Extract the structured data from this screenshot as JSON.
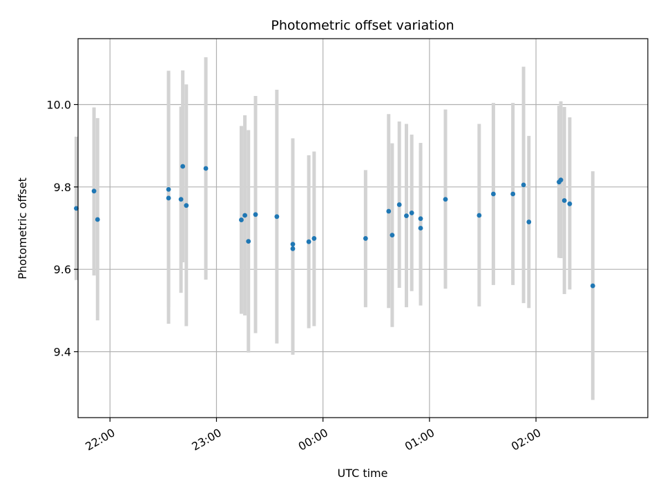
{
  "chart_data": {
    "type": "scatter",
    "title": "Photometric offset variation",
    "xlabel": "UTC time",
    "ylabel": "Photometric offset",
    "x_unit": "UTC time (hh:mm)",
    "xlim": [
      "21:42",
      "03:03"
    ],
    "ylim": [
      9.24,
      10.16
    ],
    "x_ticks": [
      "22:00",
      "23:00",
      "00:00",
      "01:00",
      "02:00"
    ],
    "y_ticks": [
      9.4,
      9.6,
      9.8,
      10.0
    ],
    "y_tick_labels": [
      "9.4",
      "9.6",
      "9.8",
      "10.0"
    ],
    "grid": true,
    "colors": {
      "point": "#1f77b4",
      "error_bar": "#d3d3d3",
      "grid": "#b0b0b0"
    },
    "series": [
      {
        "points": [
          {
            "x": "21:41",
            "y": 9.748,
            "low": 9.574,
            "high": 9.922
          },
          {
            "x": "21:51",
            "y": 9.79,
            "low": 9.585,
            "high": 9.993
          },
          {
            "x": "21:53",
            "y": 9.721,
            "low": 9.476,
            "high": 9.967
          },
          {
            "x": "22:33",
            "y": 9.794,
            "low": 9.508,
            "high": 10.082
          },
          {
            "x": "22:33",
            "y": 9.773,
            "low": 9.468,
            "high": 10.078
          },
          {
            "x": "22:40",
            "y": 9.77,
            "low": 9.543,
            "high": 9.995
          },
          {
            "x": "22:41",
            "y": 9.85,
            "low": 9.617,
            "high": 10.083
          },
          {
            "x": "22:43",
            "y": 9.755,
            "low": 9.462,
            "high": 10.049
          },
          {
            "x": "22:54",
            "y": 9.845,
            "low": 9.575,
            "high": 10.115
          },
          {
            "x": "23:14",
            "y": 9.72,
            "low": 9.492,
            "high": 9.948
          },
          {
            "x": "23:16",
            "y": 9.731,
            "low": 9.488,
            "high": 9.974
          },
          {
            "x": "23:18",
            "y": 9.668,
            "low": 9.398,
            "high": 9.938
          },
          {
            "x": "23:22",
            "y": 9.733,
            "low": 9.445,
            "high": 10.021
          },
          {
            "x": "23:34",
            "y": 9.728,
            "low": 9.42,
            "high": 10.036
          },
          {
            "x": "23:43",
            "y": 9.661,
            "low": 9.393,
            "high": 9.918
          },
          {
            "x": "23:43",
            "y": 9.65,
            "low": 9.393,
            "high": 9.907
          },
          {
            "x": "23:52",
            "y": 9.667,
            "low": 9.457,
            "high": 9.877
          },
          {
            "x": "23:55",
            "y": 9.675,
            "low": 9.462,
            "high": 9.886
          },
          {
            "x": "00:24",
            "y": 9.675,
            "low": 9.508,
            "high": 9.841
          },
          {
            "x": "00:37",
            "y": 9.741,
            "low": 9.506,
            "high": 9.977
          },
          {
            "x": "00:39",
            "y": 9.683,
            "low": 9.46,
            "high": 9.906
          },
          {
            "x": "00:43",
            "y": 9.757,
            "low": 9.555,
            "high": 9.959
          },
          {
            "x": "00:47",
            "y": 9.73,
            "low": 9.508,
            "high": 9.953
          },
          {
            "x": "00:50",
            "y": 9.737,
            "low": 9.547,
            "high": 9.927
          },
          {
            "x": "00:55",
            "y": 9.723,
            "low": 9.538,
            "high": 9.907
          },
          {
            "x": "00:55",
            "y": 9.7,
            "low": 9.512,
            "high": 9.888
          },
          {
            "x": "01:09",
            "y": 9.77,
            "low": 9.553,
            "high": 9.988
          },
          {
            "x": "01:28",
            "y": 9.731,
            "low": 9.51,
            "high": 9.953
          },
          {
            "x": "01:36",
            "y": 9.783,
            "low": 9.562,
            "high": 10.004
          },
          {
            "x": "01:47",
            "y": 9.783,
            "low": 9.562,
            "high": 10.004
          },
          {
            "x": "01:53",
            "y": 9.805,
            "low": 9.518,
            "high": 10.092
          },
          {
            "x": "01:56",
            "y": 9.715,
            "low": 9.506,
            "high": 9.924
          },
          {
            "x": "02:13",
            "y": 9.812,
            "low": 9.628,
            "high": 9.997
          },
          {
            "x": "02:14",
            "y": 9.817,
            "low": 9.627,
            "high": 10.008
          },
          {
            "x": "02:16",
            "y": 9.767,
            "low": 9.54,
            "high": 9.994
          },
          {
            "x": "02:19",
            "y": 9.759,
            "low": 9.551,
            "high": 9.969
          },
          {
            "x": "02:32",
            "y": 9.56,
            "low": 9.283,
            "high": 9.838
          }
        ]
      }
    ]
  }
}
